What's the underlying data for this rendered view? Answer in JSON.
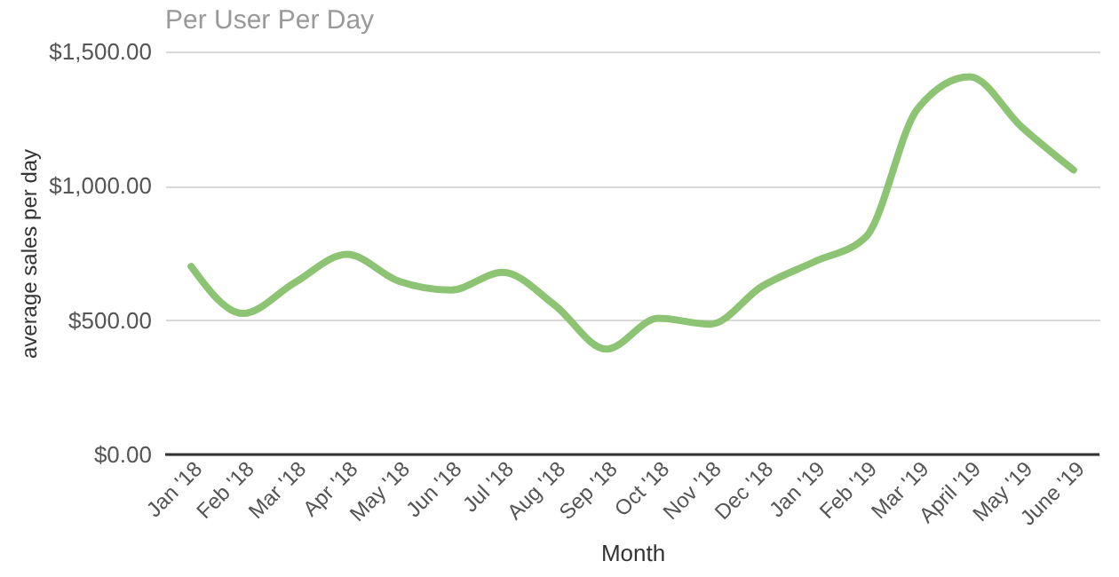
{
  "chart_data": {
    "type": "line",
    "title": "Per User Per Day",
    "xlabel": "Month",
    "ylabel": "average sales per day",
    "categories": [
      "Jan '18",
      "Feb '18",
      "Mar '18",
      "Apr '18",
      "May '18",
      "Jun '18",
      "Jul '18",
      "Aug '18",
      "Sep '18",
      "Oct '18",
      "Nov '18",
      "Dec '18",
      "Jan '19",
      "Feb '19",
      "Mar '19",
      "April '19",
      "May '19",
      "June '19"
    ],
    "series": [
      {
        "color": "#8cc474",
        "values": [
          700,
          525,
          640,
          745,
          645,
          612,
          678,
          557,
          392,
          507,
          485,
          626,
          717,
          810,
          1288,
          1406,
          1219,
          1059
        ]
      }
    ],
    "ylim": [
      0,
      1500
    ],
    "yticks": [
      {
        "value": 0,
        "label": "$0.00"
      },
      {
        "value": 500,
        "label": "$500.00"
      },
      {
        "value": 1000,
        "label": "$1,000.00"
      },
      {
        "value": 1500,
        "label": "$1,500.00"
      }
    ],
    "grid": "y",
    "marker": "none",
    "line_style": "solid"
  }
}
